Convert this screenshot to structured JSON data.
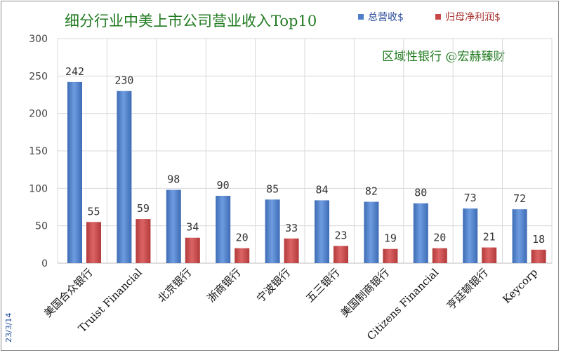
{
  "chart_data": {
    "type": "bar",
    "title": "细分行业中美上市公司营业收入Top10",
    "subtitle": "区域性银行 @宏赫臻财",
    "date_label": "23/3/14",
    "categories": [
      "美国合众银行",
      "Truist Financial",
      "北京银行",
      "浙商银行",
      "宁波银行",
      "五三银行",
      "美国制商银行",
      "Citizens Financial",
      "亨廷顿银行",
      "Keycorp"
    ],
    "series": [
      {
        "name": "总营收$",
        "color": "#4e7fc8",
        "values": [
          242,
          230,
          98,
          90,
          85,
          84,
          82,
          80,
          73,
          72
        ]
      },
      {
        "name": "归母净利润$",
        "color": "#c84848",
        "values": [
          55,
          59,
          34,
          20,
          33,
          23,
          19,
          20,
          21,
          18
        ]
      }
    ],
    "ylim": [
      0,
      300
    ],
    "yticks": [
      "0",
      "50",
      "100",
      "150",
      "200",
      "250",
      "300"
    ],
    "grid": true,
    "legend_position": "top-right"
  }
}
